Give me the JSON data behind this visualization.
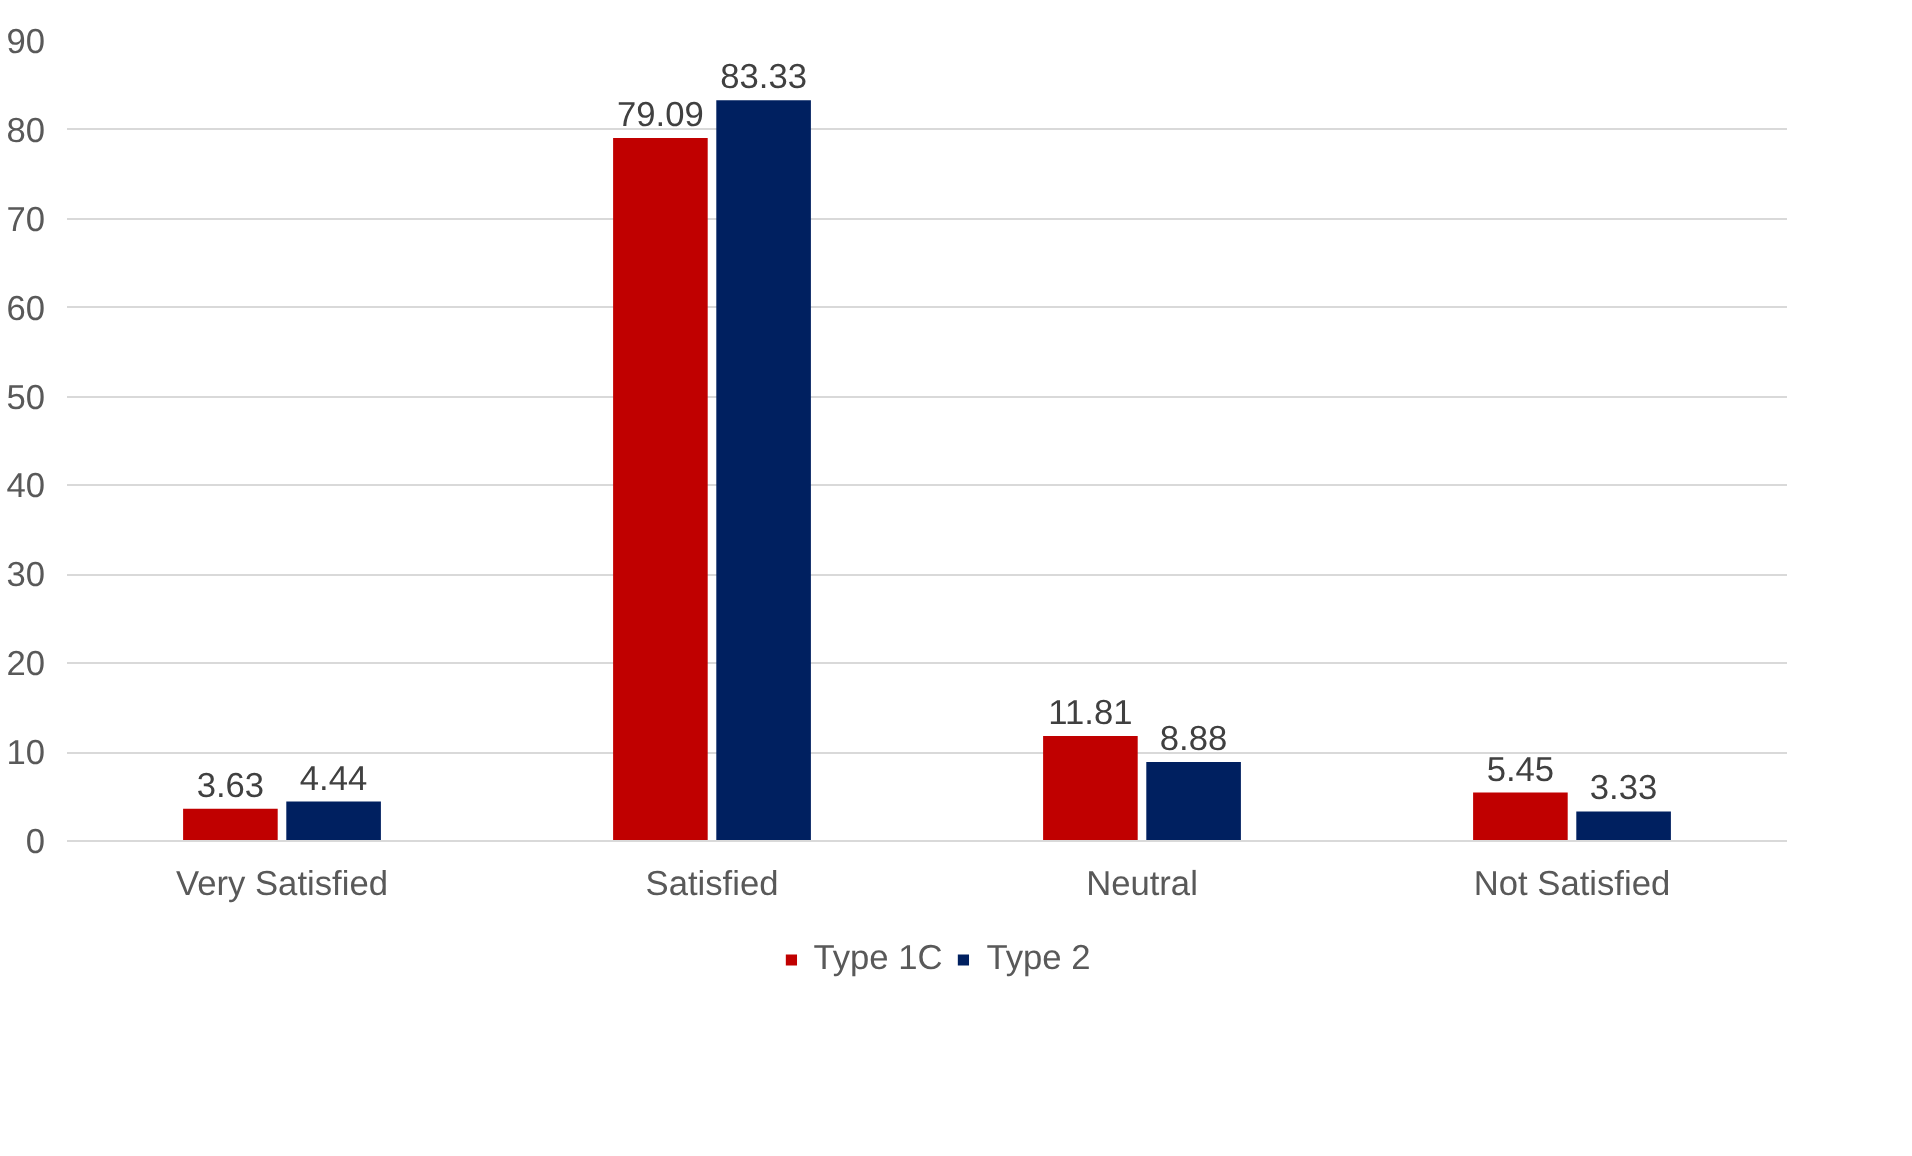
{
  "chart_data": {
    "type": "bar",
    "categories": [
      "Very Satisfied",
      "Satisfied",
      "Neutral",
      "Not Satisfied"
    ],
    "series": [
      {
        "name": "Type 1C",
        "color": "#c00000",
        "values": [
          3.63,
          79.09,
          11.81,
          5.45
        ]
      },
      {
        "name": "Type 2",
        "color": "#002060",
        "values": [
          4.44,
          83.33,
          8.88,
          3.33
        ]
      }
    ],
    "ylim": [
      0,
      90
    ],
    "yticks": [
      0,
      10,
      20,
      30,
      40,
      50,
      60,
      70,
      80,
      90
    ],
    "grid": "y",
    "legend": "bottom",
    "data_labels": true
  }
}
